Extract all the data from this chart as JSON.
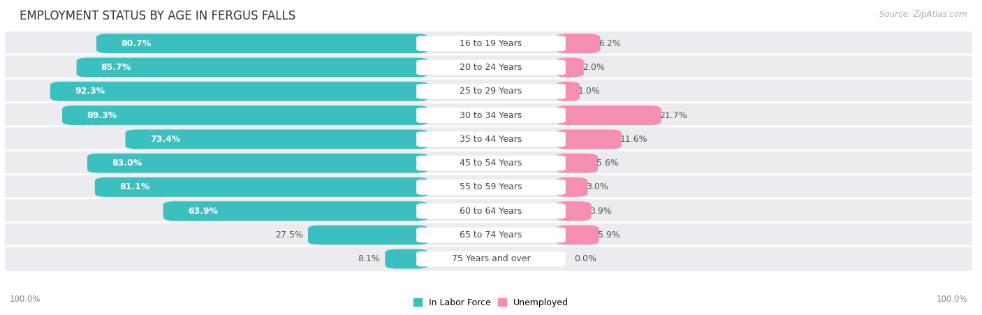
{
  "title": "EMPLOYMENT STATUS BY AGE IN FERGUS FALLS",
  "source": "Source: ZipAtlas.com",
  "categories": [
    "16 to 19 Years",
    "20 to 24 Years",
    "25 to 29 Years",
    "30 to 34 Years",
    "35 to 44 Years",
    "45 to 54 Years",
    "55 to 59 Years",
    "60 to 64 Years",
    "65 to 74 Years",
    "75 Years and over"
  ],
  "labor_force": [
    80.7,
    85.7,
    92.3,
    89.3,
    73.4,
    83.0,
    81.1,
    63.9,
    27.5,
    8.1
  ],
  "unemployed": [
    6.2,
    2.0,
    1.0,
    21.7,
    11.6,
    5.6,
    3.0,
    3.9,
    5.9,
    0.0
  ],
  "labor_force_color": "#3bbfbf",
  "unemployed_color": "#f48fb1",
  "row_bg_color": "#ebebf0",
  "label_white": "#ffffff",
  "label_dark": "#555555",
  "axis_label_left": "100.0%",
  "axis_label_right": "100.0%",
  "max_value": 100.0,
  "title_fontsize": 12,
  "source_fontsize": 8.5,
  "bar_label_fontsize": 9,
  "category_fontsize": 9,
  "legend_fontsize": 9,
  "axis_tick_fontsize": 8.5
}
